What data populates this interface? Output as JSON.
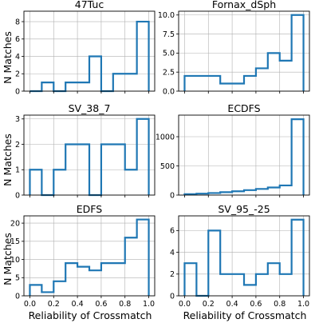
{
  "figure": {
    "ylabel": "N Matches",
    "xlabel": "Reliability of Crossmatch",
    "line_color": "#1f77b4",
    "grid": true
  },
  "chart_data": [
    {
      "type": "histogram",
      "title": "47Tuc",
      "bin_edges": [
        0.0,
        0.1,
        0.2,
        0.3,
        0.4,
        0.5,
        0.6,
        0.7,
        0.8,
        0.9,
        1.0
      ],
      "values": [
        0,
        1,
        0,
        1,
        1,
        4,
        0,
        2,
        2,
        8
      ],
      "xlim": [
        -0.05,
        1.05
      ],
      "ylim": [
        0,
        9.2
      ],
      "xticks": [
        0.0,
        0.2,
        0.4,
        0.6,
        0.8,
        1.0
      ],
      "yticks": [
        0,
        2,
        4,
        6,
        8
      ],
      "ytick_labels": [
        "0",
        "2",
        "4",
        "6",
        "8"
      ],
      "show_xtick_labels": false
    },
    {
      "type": "histogram",
      "title": "Fornax_dSph",
      "bin_edges": [
        0.0,
        0.1,
        0.2,
        0.3,
        0.4,
        0.5,
        0.6,
        0.7,
        0.8,
        0.9,
        1.0
      ],
      "values": [
        2,
        2,
        2,
        1,
        1,
        2,
        3,
        5,
        4,
        10
      ],
      "xlim": [
        -0.05,
        1.05
      ],
      "ylim": [
        0,
        10.5
      ],
      "xticks": [
        0.0,
        0.2,
        0.4,
        0.6,
        0.8,
        1.0
      ],
      "yticks": [
        0,
        2.5,
        5,
        7.5,
        10
      ],
      "ytick_labels": [
        "0.0",
        "2.5",
        "5.0",
        "7.5",
        "10.0"
      ],
      "show_xtick_labels": false
    },
    {
      "type": "histogram",
      "title": "SV_38_7",
      "bin_edges": [
        0.0,
        0.1,
        0.2,
        0.3,
        0.4,
        0.5,
        0.6,
        0.7,
        0.8,
        0.9,
        1.0
      ],
      "values": [
        1,
        0,
        1,
        2,
        2,
        0,
        2,
        2,
        1,
        3
      ],
      "xlim": [
        -0.05,
        1.05
      ],
      "ylim": [
        0,
        3.15
      ],
      "xticks": [
        0.0,
        0.2,
        0.4,
        0.6,
        0.8,
        1.0
      ],
      "yticks": [
        0,
        1,
        2,
        3
      ],
      "ytick_labels": [
        "0",
        "1",
        "2",
        "3"
      ],
      "show_xtick_labels": false
    },
    {
      "type": "histogram",
      "title": "ECDFS",
      "bin_edges": [
        0.0,
        0.1,
        0.2,
        0.3,
        0.4,
        0.5,
        0.6,
        0.7,
        0.8,
        0.9,
        1.0
      ],
      "values": [
        15,
        25,
        35,
        50,
        65,
        85,
        105,
        130,
        165,
        1300
      ],
      "xlim": [
        -0.05,
        1.05
      ],
      "ylim": [
        0,
        1370
      ],
      "xticks": [
        0.0,
        0.2,
        0.4,
        0.6,
        0.8,
        1.0
      ],
      "yticks": [
        0,
        500,
        1000
      ],
      "ytick_labels": [
        "0",
        "500",
        "1000"
      ],
      "show_xtick_labels": false
    },
    {
      "type": "histogram",
      "title": "EDFS",
      "bin_edges": [
        0.0,
        0.1,
        0.2,
        0.3,
        0.4,
        0.5,
        0.6,
        0.7,
        0.8,
        0.9,
        1.0
      ],
      "values": [
        3,
        1,
        4,
        9,
        8,
        7,
        9,
        9,
        16,
        21
      ],
      "xlim": [
        -0.05,
        1.05
      ],
      "ylim": [
        0,
        22
      ],
      "xticks": [
        0.0,
        0.2,
        0.4,
        0.6,
        0.8,
        1.0
      ],
      "xtick_labels": [
        "0.0",
        "0.2",
        "0.4",
        "0.6",
        "0.8",
        "1.0"
      ],
      "yticks": [
        0,
        5,
        10,
        15,
        20
      ],
      "ytick_labels": [
        "0",
        "5",
        "10",
        "15",
        "20"
      ],
      "show_xtick_labels": true
    },
    {
      "type": "histogram",
      "title": "SV_95_-25",
      "bin_edges": [
        0.0,
        0.1,
        0.2,
        0.3,
        0.4,
        0.5,
        0.6,
        0.7,
        0.8,
        0.9,
        1.0
      ],
      "values": [
        3,
        0,
        6,
        2,
        2,
        1,
        2,
        3,
        2,
        7
      ],
      "xlim": [
        -0.05,
        1.05
      ],
      "ylim": [
        0,
        7.35
      ],
      "xticks": [
        0.0,
        0.2,
        0.4,
        0.6,
        0.8,
        1.0
      ],
      "xtick_labels": [
        "0.0",
        "0.2",
        "0.4",
        "0.6",
        "0.8",
        "1.0"
      ],
      "yticks": [
        0,
        2,
        4,
        6
      ],
      "ytick_labels": [
        "0",
        "2",
        "4",
        "6"
      ],
      "show_xtick_labels": true
    }
  ]
}
